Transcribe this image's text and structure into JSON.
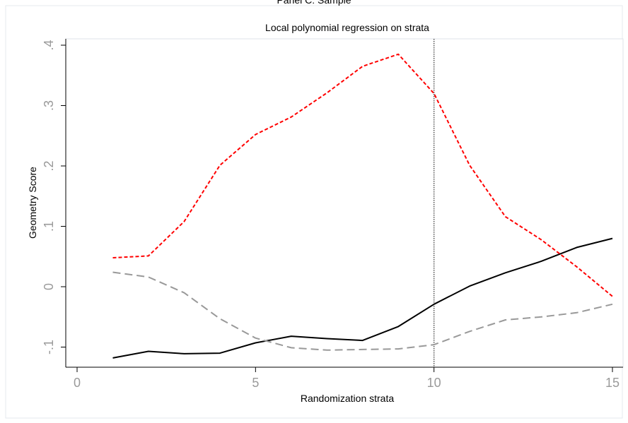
{
  "panel_title": "Panel C: Sample",
  "chart_data": {
    "type": "line",
    "title": "Local polynomial regression on strata",
    "xlabel": "Randomization strata",
    "ylabel": "Geometry Score",
    "xlim": [
      0,
      15
    ],
    "ylim": [
      -0.12,
      0.41
    ],
    "xticks": [
      0,
      5,
      10,
      15
    ],
    "xtick_labels": [
      "0",
      "5",
      "10",
      "15"
    ],
    "yticks": [
      -0.1,
      0,
      0.1,
      0.2,
      0.3,
      0.4
    ],
    "ytick_labels": [
      "-.1",
      "0",
      ".1",
      ".2",
      ".3",
      ".4"
    ],
    "vline_x": 10,
    "grid": false,
    "legend": false,
    "x": [
      1,
      2,
      3,
      4,
      5,
      6,
      7,
      8,
      9,
      10,
      11,
      12,
      13,
      14,
      15
    ],
    "series": [
      {
        "color": "#000000",
        "style": "solid",
        "values": [
          -0.118,
          -0.107,
          -0.111,
          -0.11,
          -0.093,
          -0.082,
          -0.086,
          -0.089,
          -0.066,
          -0.029,
          0.001,
          0.023,
          0.042,
          0.065,
          0.08
        ]
      },
      {
        "color": "#ff0000",
        "style": "short-dash",
        "values": [
          0.048,
          0.051,
          0.108,
          0.201,
          0.252,
          0.281,
          0.321,
          0.365,
          0.385,
          0.32,
          0.201,
          0.116,
          0.078,
          0.033,
          -0.016
        ]
      },
      {
        "color": "#999999",
        "style": "long-dash",
        "values": [
          0.024,
          0.016,
          -0.01,
          -0.053,
          -0.085,
          -0.101,
          -0.105,
          -0.104,
          -0.103,
          -0.096,
          -0.074,
          -0.055,
          -0.05,
          -0.043,
          -0.029
        ]
      }
    ]
  }
}
